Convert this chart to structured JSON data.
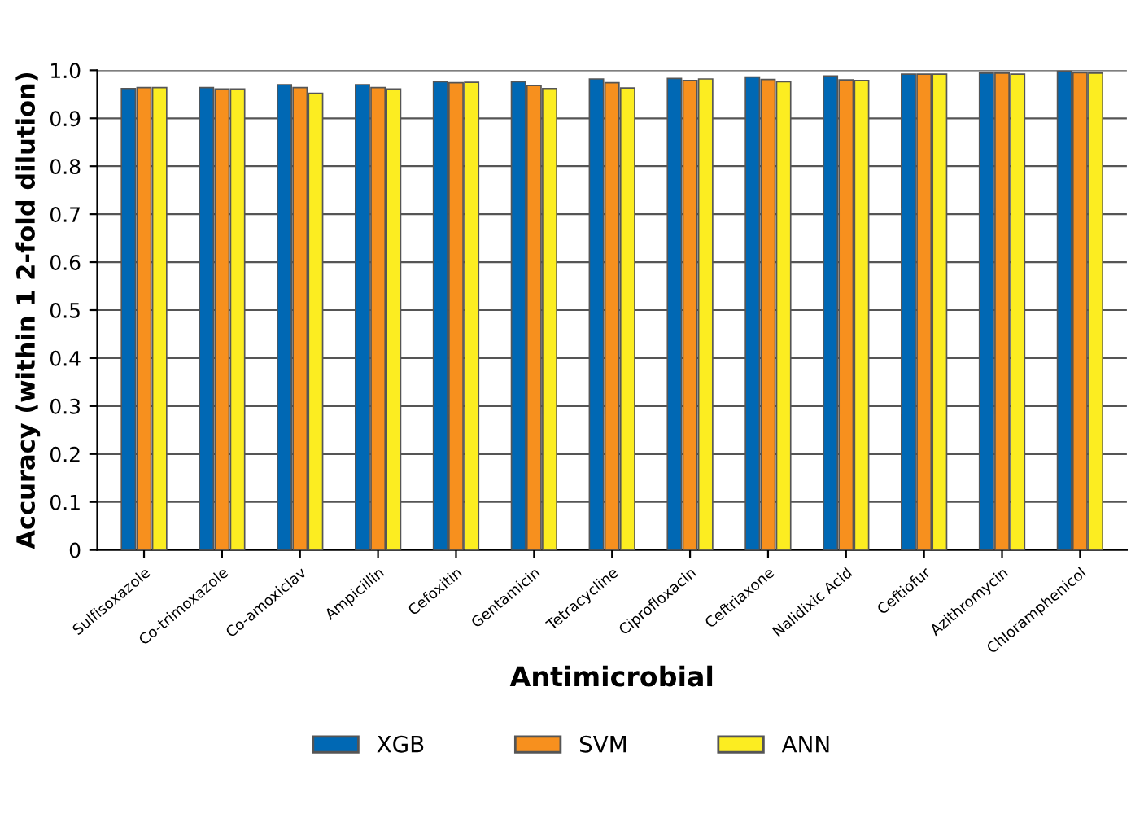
{
  "chart_data": {
    "type": "bar",
    "xlabel": "Antimicrobial",
    "ylabel": "Accuracy (within 1 2-fold dilution)",
    "categories": [
      "Sulfisoxazole",
      "Co-trimoxazole",
      "Co-amoxiclav",
      "Ampicillin",
      "Cefoxitin",
      "Gentamicin",
      "Tetracycline",
      "Ciprofloxacin",
      "Ceftriaxone",
      "Nalidixic Acid",
      "Ceftiofur",
      "Azithromycin",
      "Chloramphenicol"
    ],
    "series": [
      {
        "name": "XGB",
        "color": "#0068b4",
        "values": [
          0.962,
          0.964,
          0.97,
          0.97,
          0.976,
          0.976,
          0.982,
          0.983,
          0.986,
          0.988,
          0.992,
          0.994,
          0.998
        ]
      },
      {
        "name": "SVM",
        "color": "#f7901e",
        "values": [
          0.964,
          0.961,
          0.964,
          0.964,
          0.974,
          0.968,
          0.974,
          0.979,
          0.981,
          0.98,
          0.992,
          0.994,
          0.995
        ]
      },
      {
        "name": "ANN",
        "color": "#fced21",
        "values": [
          0.964,
          0.961,
          0.952,
          0.961,
          0.975,
          0.962,
          0.963,
          0.982,
          0.976,
          0.979,
          0.992,
          0.992,
          0.994
        ]
      }
    ],
    "ylim": [
      0,
      1.0
    ],
    "yticks": [
      0,
      0.1,
      0.2,
      0.3,
      0.4,
      0.5,
      0.6,
      0.7,
      0.8,
      0.9,
      {
        "value": 1.0,
        "label": "1.0"
      }
    ],
    "grid": "y",
    "legend": "bottom"
  }
}
